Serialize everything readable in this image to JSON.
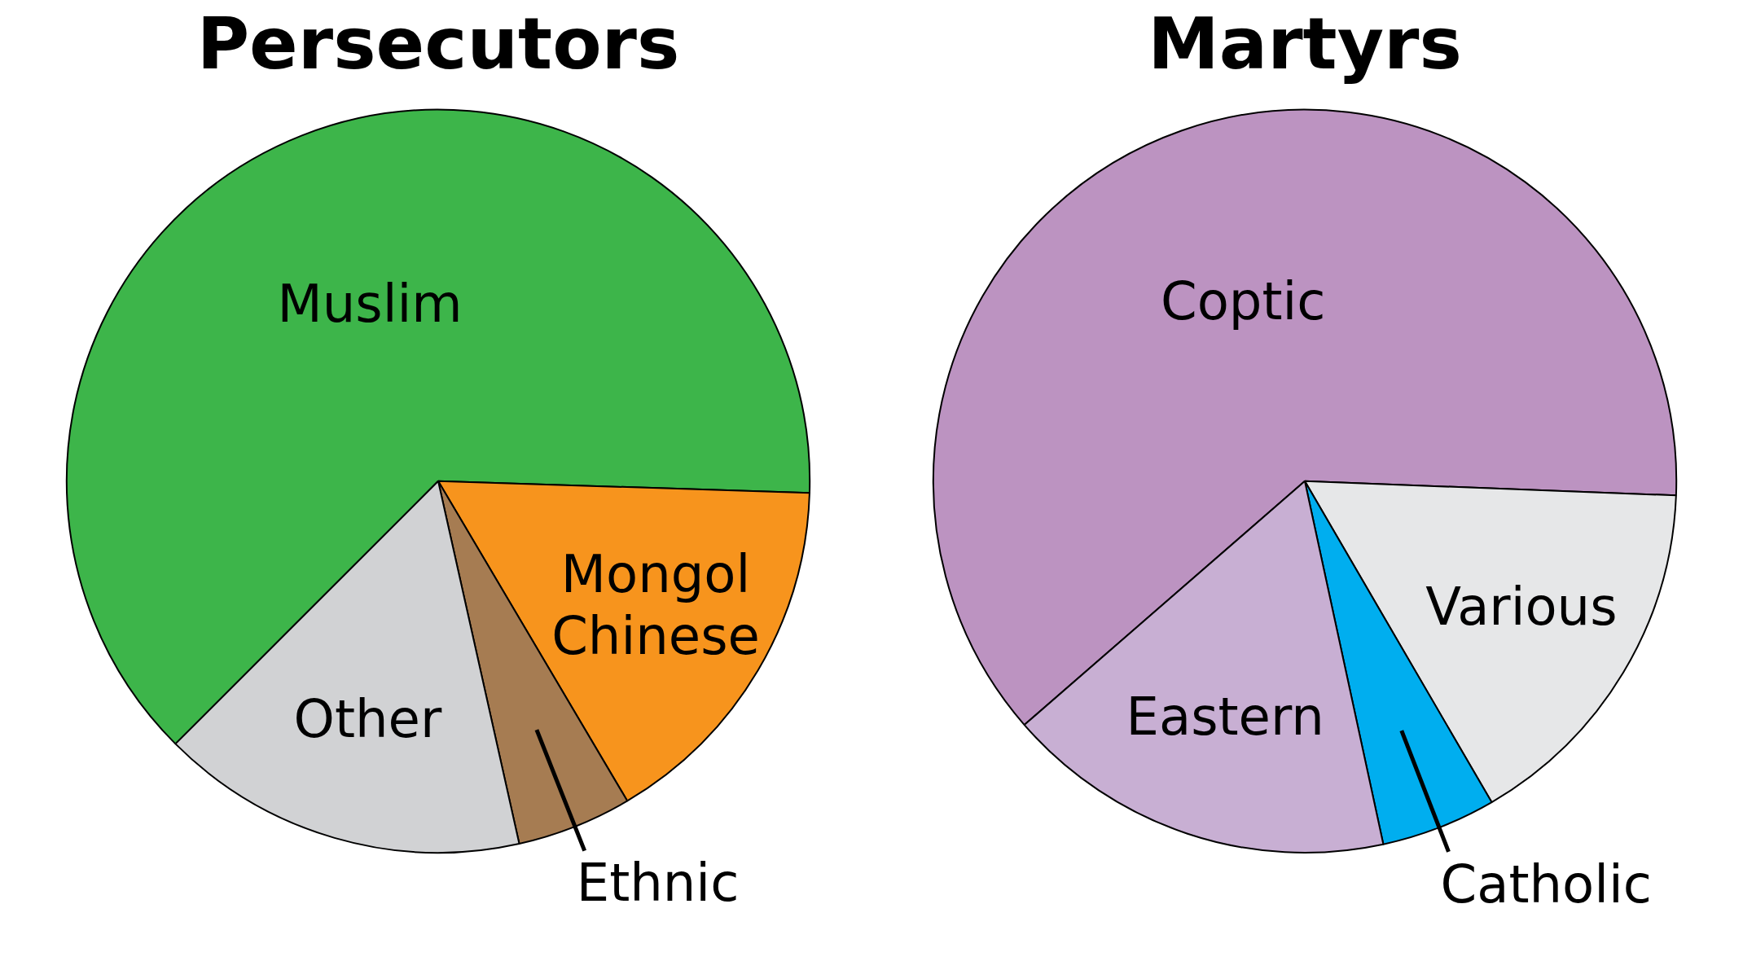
{
  "chart_data": [
    {
      "type": "pie",
      "title": "Persecutors",
      "categories": [
        "Muslim",
        "Mongol Chinese",
        "Ethnic",
        "Other"
      ],
      "values": [
        63,
        16,
        5,
        16
      ],
      "colors": [
        "#3db54a",
        "#f7941d",
        "#a67c52",
        "#d1d2d4"
      ],
      "legend": false
    },
    {
      "type": "pie",
      "title": "Martyrs",
      "categories": [
        "Coptic",
        "Various",
        "Catholic",
        "Eastern"
      ],
      "values": [
        62,
        16,
        5,
        17
      ],
      "colors": [
        "#bc93c1",
        "#e6e7e8",
        "#00aeef",
        "#c8afd3"
      ],
      "legend": false
    }
  ]
}
